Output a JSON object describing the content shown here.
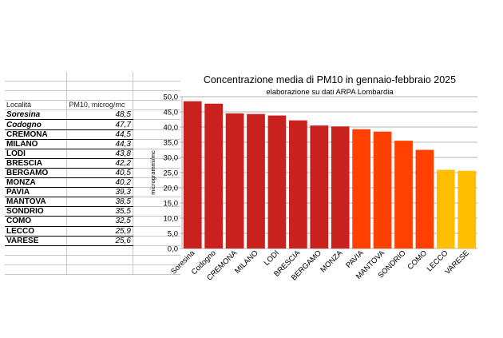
{
  "table": {
    "header": {
      "col1": "Località",
      "col2": "PM10, microg/mc"
    },
    "rows": [
      {
        "name": "Soresina",
        "value": "48,5",
        "italic": true
      },
      {
        "name": "Codogno",
        "value": "47,7",
        "italic": true
      },
      {
        "name": "CREMONA",
        "value": "44,5"
      },
      {
        "name": "MILANO",
        "value": "44,3"
      },
      {
        "name": "LODI",
        "value": "43,8"
      },
      {
        "name": "BRESCIA",
        "value": "42,2"
      },
      {
        "name": "BERGAMO",
        "value": "40,5"
      },
      {
        "name": "MONZA",
        "value": "40,2"
      },
      {
        "name": "PAVIA",
        "value": "39,3"
      },
      {
        "name": "MANTOVA",
        "value": "38,5"
      },
      {
        "name": "SONDRIO",
        "value": "35,5"
      },
      {
        "name": "COMO",
        "value": "32,5"
      },
      {
        "name": "LECCO",
        "value": "25,9"
      },
      {
        "name": "VARESE",
        "value": "25,6"
      }
    ]
  },
  "chart_data": {
    "type": "bar",
    "title": "Concentrazione media di PM10 in gennaio-febbraio 2025",
    "subtitle": "elaborazione su dati ARPA Lombardia",
    "ylabel": "microgrammi/mc",
    "xlabel": "",
    "ylim": [
      0,
      50
    ],
    "ytick_step": 5,
    "ytick_labels": [
      "0,0",
      "5,0",
      "10,0",
      "15,0",
      "20,0",
      "25,0",
      "30,0",
      "35,0",
      "40,0",
      "45,0",
      "50,0"
    ],
    "grid": true,
    "categories": [
      "Soresina",
      "Codogno",
      "CREMONA",
      "MILANO",
      "LODI",
      "BRESCIA",
      "BERGAMO",
      "MONZA",
      "PAVIA",
      "MANTOVA",
      "SONDRIO",
      "COMO",
      "LECCO",
      "VARESE"
    ],
    "values": [
      48.5,
      47.7,
      44.5,
      44.3,
      43.8,
      42.2,
      40.5,
      40.2,
      39.3,
      38.5,
      35.5,
      32.5,
      25.9,
      25.6
    ],
    "colors": [
      "#c9211e",
      "#c9211e",
      "#c9211e",
      "#c9211e",
      "#c9211e",
      "#c9211e",
      "#c9211e",
      "#c9211e",
      "#ff4000",
      "#ff4000",
      "#ff4000",
      "#ff4000",
      "#ffbf00",
      "#ffbf00"
    ]
  }
}
